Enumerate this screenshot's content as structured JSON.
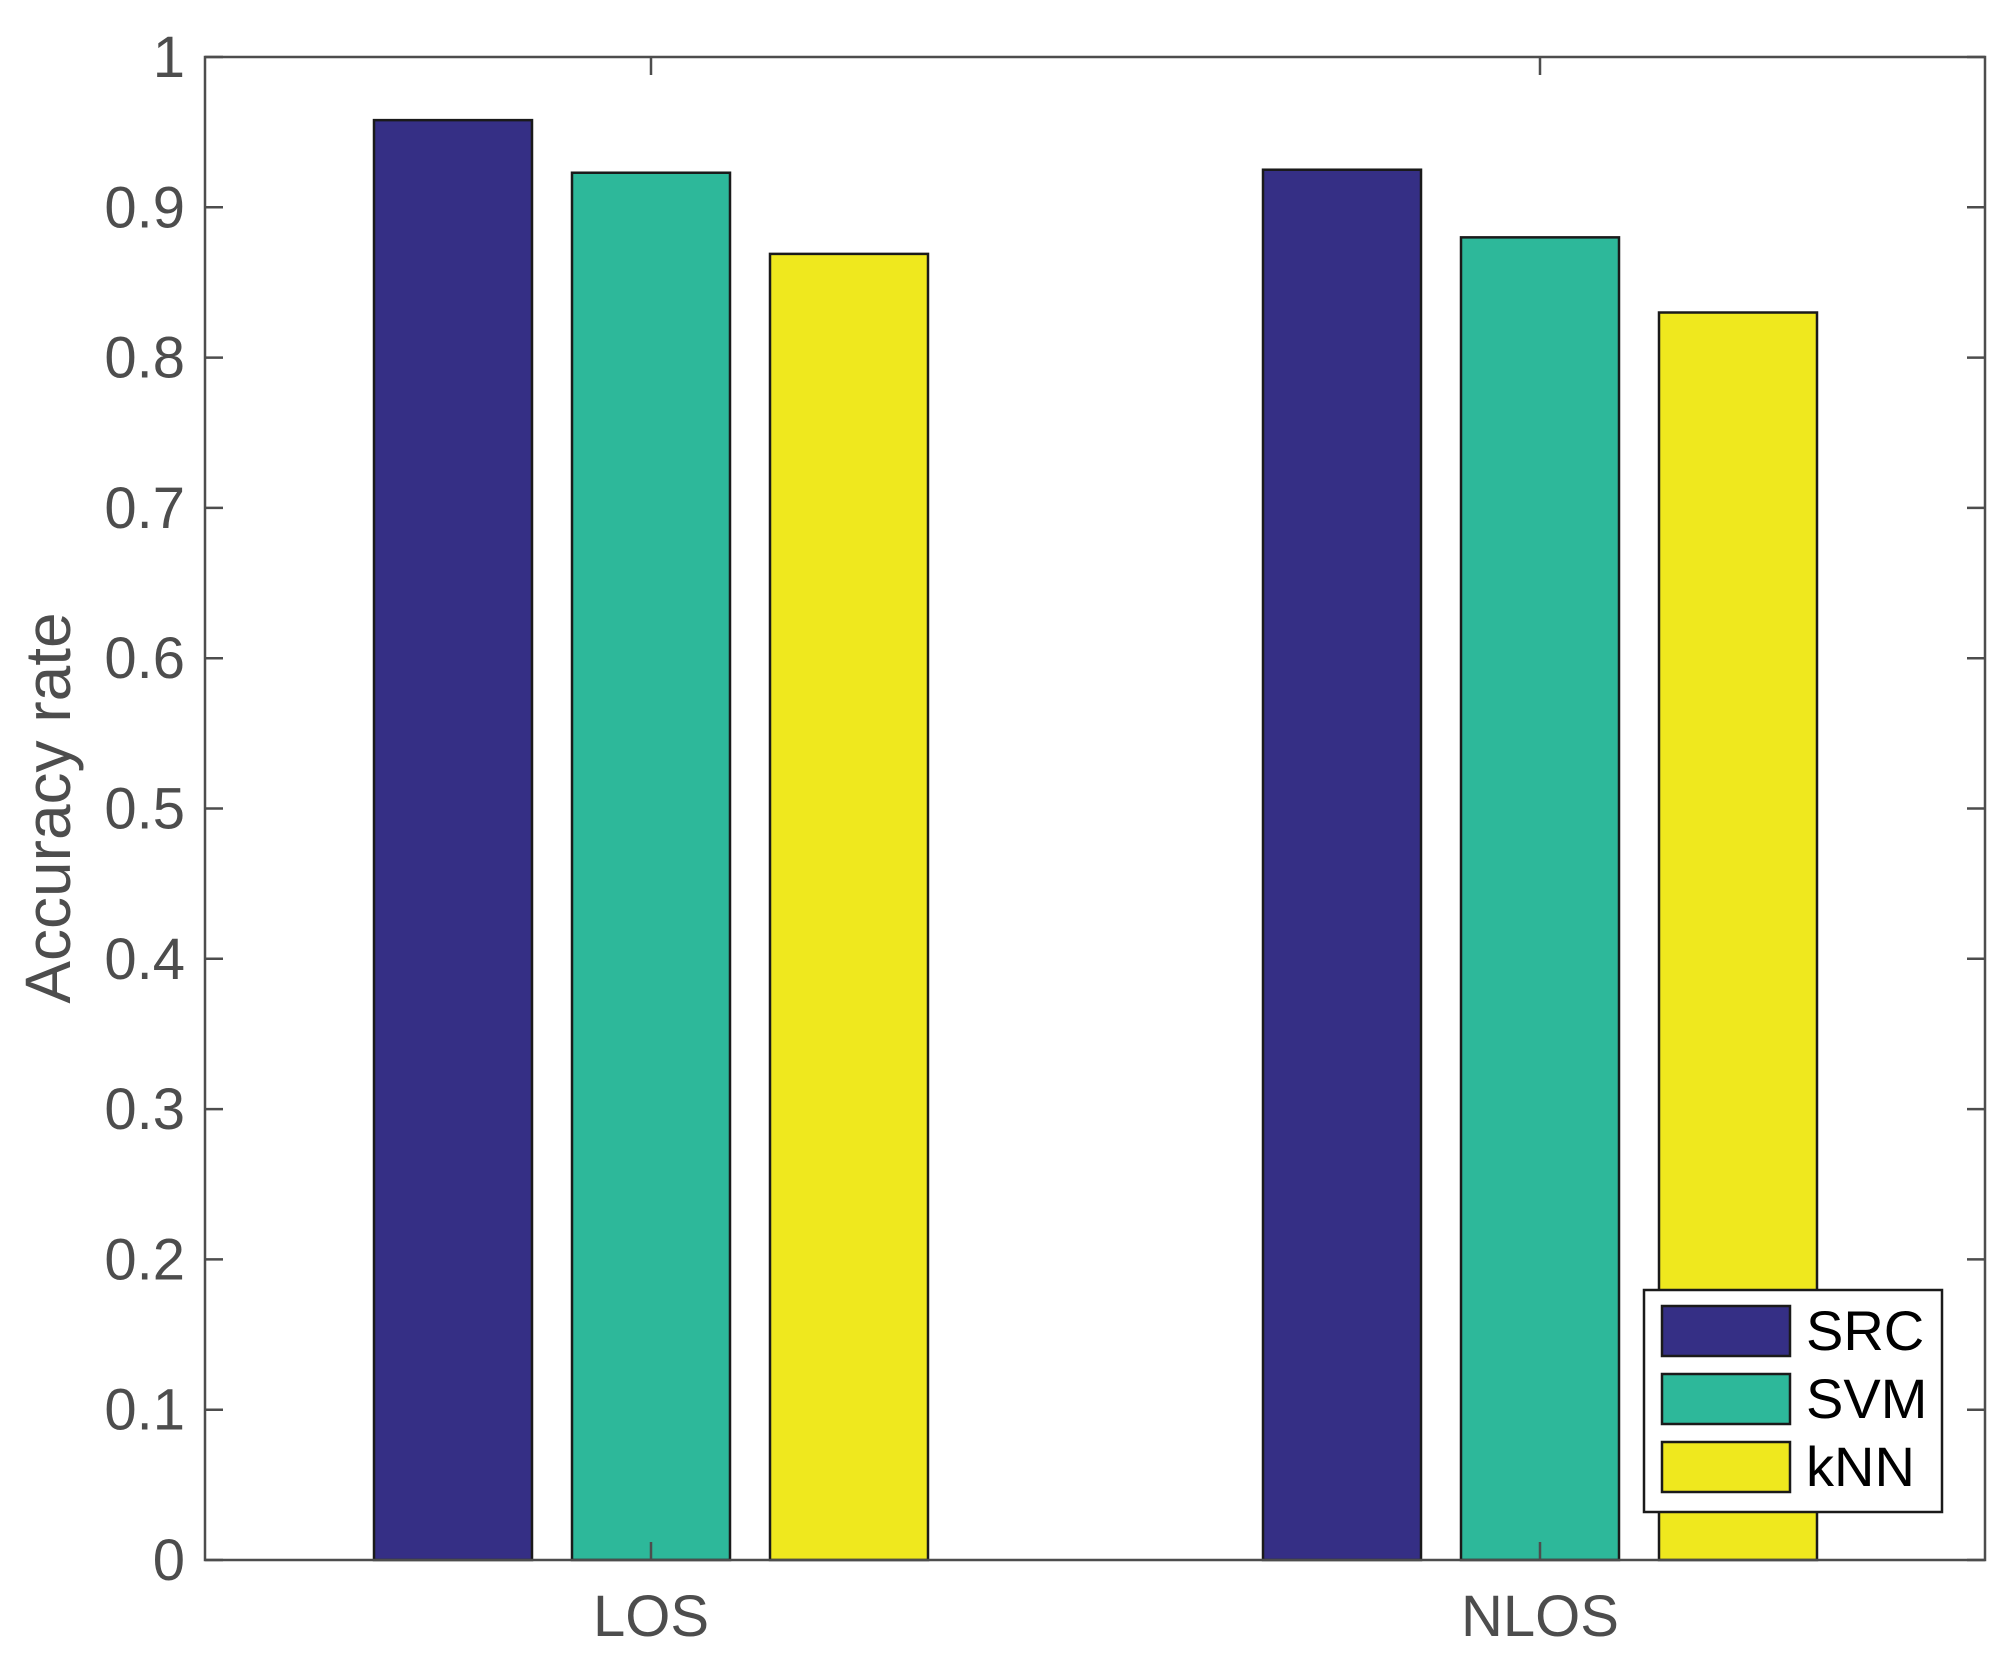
{
  "chart_data": {
    "type": "bar",
    "title": "",
    "xlabel": "",
    "ylabel": "Accuracy rate",
    "categories": [
      "LOS",
      "NLOS"
    ],
    "series": [
      {
        "name": "SRC",
        "values": [
          0.958,
          0.925
        ],
        "color": "#352F85"
      },
      {
        "name": "SVM",
        "values": [
          0.923,
          0.88
        ],
        "color": "#2DB89A"
      },
      {
        "name": "kNN",
        "values": [
          0.869,
          0.83
        ],
        "color": "#EFE81E"
      }
    ],
    "ylim": [
      0,
      1
    ],
    "yticks": [
      "0",
      "0.1",
      "0.2",
      "0.3",
      "0.4",
      "0.5",
      "0.6",
      "0.7",
      "0.8",
      "0.9",
      "1"
    ],
    "grid": false,
    "legend_position": "bottom-right",
    "axis_color": "#4D4D4D",
    "bar_edge_color": "#1A1A1A"
  }
}
